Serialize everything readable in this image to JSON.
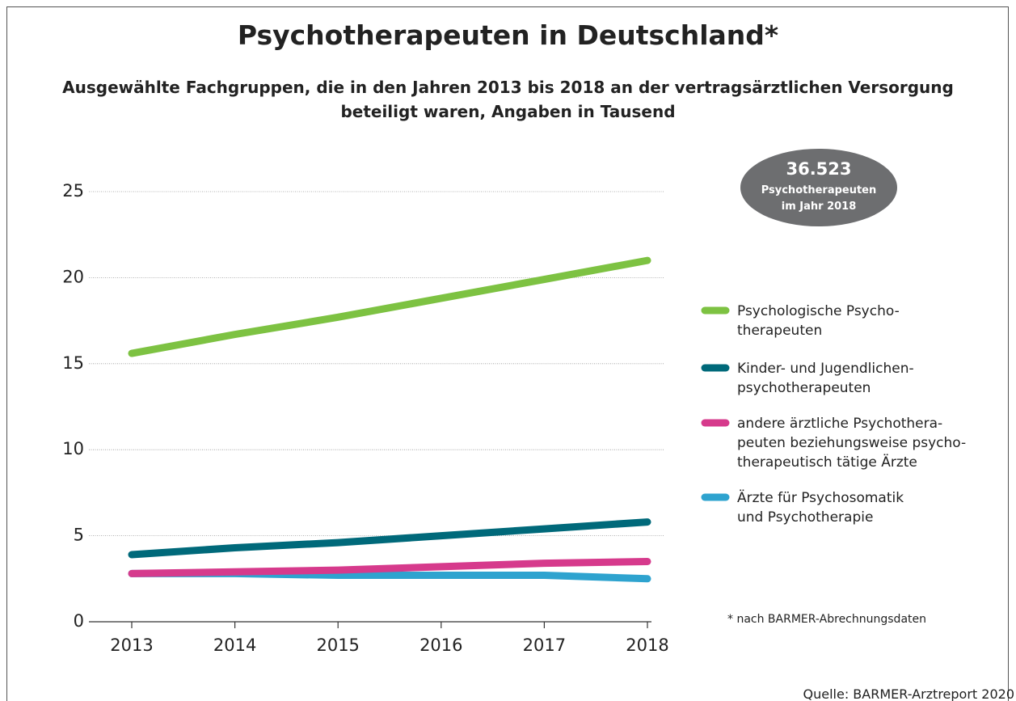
{
  "chart_data": {
    "type": "line",
    "title": "Psychotherapeuten in Deutschland*",
    "subtitle": "Ausgewählte Fachgruppen, die in den Jahren 2013 bis 2018 an der vertragsärztlichen Versorgung\nbeteiligt waren, Angaben in Tausend",
    "categories": [
      "2013",
      "2014",
      "2015",
      "2016",
      "2017",
      "2018"
    ],
    "series": [
      {
        "name": "Psychologische Psycho-\ntherapeuten",
        "color": "#7dc242",
        "values": [
          15.6,
          16.7,
          17.7,
          18.8,
          19.9,
          21.0
        ]
      },
      {
        "name": "Kinder- und Jugendlichen-\npsychotherapeuten",
        "color": "#00697a",
        "values": [
          3.9,
          4.3,
          4.6,
          5.0,
          5.4,
          5.8
        ]
      },
      {
        "name": "andere ärztliche Psychothera-\npeuten beziehungsweise psycho-\ntherapeutisch tätige Ärzte",
        "color": "#d63a8c",
        "values": [
          2.8,
          2.9,
          3.0,
          3.2,
          3.4,
          3.5
        ]
      },
      {
        "name": "Ärzte für Psychosomatik\nund Psychotherapie",
        "color": "#2ea3cf",
        "values": [
          2.8,
          2.8,
          2.7,
          2.7,
          2.7,
          2.5
        ]
      }
    ],
    "ylim": [
      0,
      25
    ],
    "yticks": [
      0,
      5,
      10,
      15,
      20,
      25
    ],
    "grid": true,
    "annotation": {
      "value": "36.523",
      "text": "Psychotherapeuten\nim Jahr 2018"
    },
    "footnote": "* nach BARMER-Abrechnungsdaten",
    "source": "Quelle: BARMER-Arztreport 2020"
  }
}
